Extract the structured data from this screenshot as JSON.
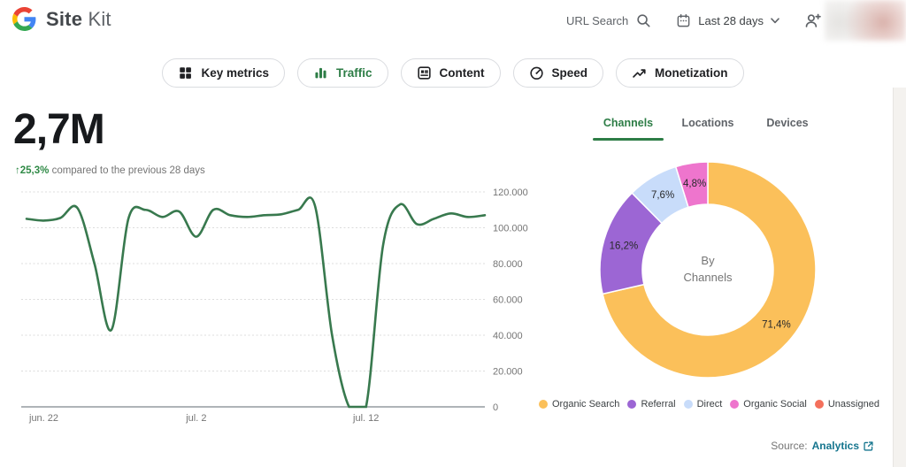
{
  "header": {
    "brand": "Site",
    "product": "Kit",
    "url_search": "URL Search",
    "date_range": "Last 28 days"
  },
  "nav_tabs": [
    {
      "label": "Key metrics",
      "icon": "grid-icon",
      "active": false
    },
    {
      "label": "Traffic",
      "icon": "bar-chart-icon",
      "active": true
    },
    {
      "label": "Content",
      "icon": "article-icon",
      "active": false
    },
    {
      "label": "Speed",
      "icon": "speedometer-icon",
      "active": false
    },
    {
      "label": "Monetization",
      "icon": "trending-up-icon",
      "active": false
    }
  ],
  "overview": {
    "total": "2,7M",
    "change_arrow": "↑",
    "change": "25,3%",
    "caption": "compared to the previous 28 days"
  },
  "panel": {
    "tabs": [
      {
        "label": "Channels",
        "active": true
      },
      {
        "label": "Locations",
        "active": false
      },
      {
        "label": "Devices",
        "active": false
      }
    ],
    "source_label": "Source:",
    "source_link": "Analytics"
  },
  "colors": {
    "accent_green": "#2d7d46",
    "change_green": "#2f8a46",
    "line_green": "#38794e",
    "link_teal": "#15758e",
    "muted_text": "#757575"
  },
  "chart_data": [
    {
      "type": "line",
      "name": "unique-visitors-over-time",
      "series": [
        {
          "name": "Unique visitors",
          "color": "#38794e",
          "values": [
            105000,
            104000,
            105500,
            111000,
            80000,
            43000,
            105000,
            110000,
            106000,
            109000,
            95000,
            110000,
            107000,
            106000,
            107000,
            107500,
            110000,
            112000,
            40000,
            0,
            0,
            90000,
            113000,
            102000,
            105000,
            108000,
            106000,
            107000
          ]
        }
      ],
      "x_tick_labels": [
        "jun. 22",
        "jul. 2",
        "jul. 12"
      ],
      "x_tick_days": [
        0,
        10,
        20
      ],
      "y_ticks": [
        0,
        20000,
        40000,
        60000,
        80000,
        100000,
        120000
      ],
      "y_tick_labels": [
        "0",
        "20.000",
        "40.000",
        "60.000",
        "80.000",
        "100.000",
        "120.000"
      ],
      "ylim": [
        0,
        120000
      ],
      "grid": "horizontal-dotted",
      "y_axis_side": "right"
    },
    {
      "type": "pie",
      "donut": true,
      "name": "traffic-by-channels",
      "center_label": [
        "By",
        "Channels"
      ],
      "legend_position": "bottom",
      "slices": [
        {
          "label": "Organic Search",
          "value": 71.4,
          "display": "71,4%",
          "color": "#fbc05a"
        },
        {
          "label": "Referral",
          "value": 16.2,
          "display": "16,2%",
          "color": "#9c66d4"
        },
        {
          "label": "Direct",
          "value": 7.6,
          "display": "7,6%",
          "color": "#c8dcfa"
        },
        {
          "label": "Organic Social",
          "value": 4.8,
          "display": "4,8%",
          "color": "#ee75cd"
        },
        {
          "label": "Unassigned",
          "value": 0,
          "display": "",
          "color": "#f4705c"
        }
      ]
    }
  ]
}
